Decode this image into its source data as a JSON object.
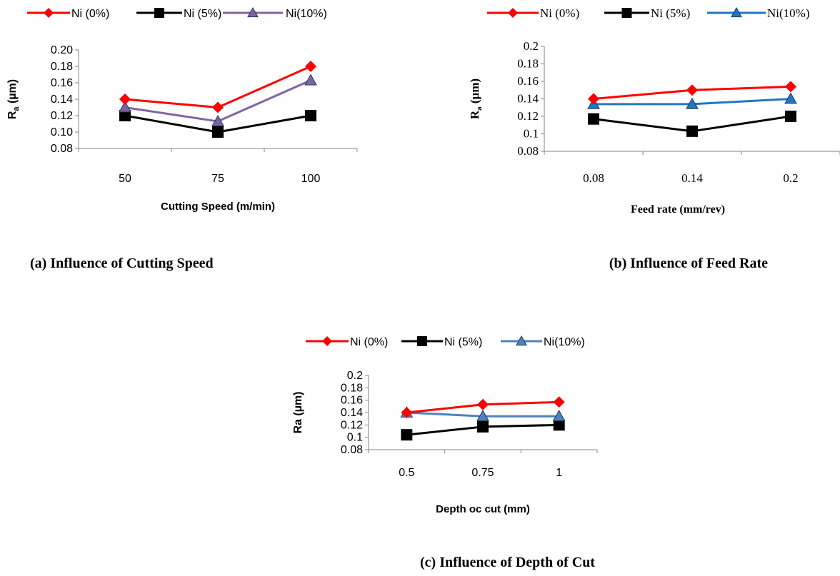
{
  "colors": {
    "ni0": "#ff0000",
    "ni5": "#000000",
    "ni10_a": "#8064a2",
    "ni10_b": "#1f77c4",
    "ni10_c": "#4f81bd"
  },
  "chart_data": [
    {
      "type": "line",
      "caption": "(a) Influence of Cutting Speed",
      "xlabel": "Cutting Speed  (m/min)",
      "ylabel_main": "R",
      "ylabel_sub": "a",
      "ylabel_unit": " (µm)",
      "categories": [
        "50",
        "75",
        "100"
      ],
      "ylim": [
        0.08,
        0.2
      ],
      "yticks": [
        "0.08",
        "0.10",
        "0.12",
        "0.14",
        "0.16",
        "0.18",
        "0.20"
      ],
      "series": [
        {
          "name": "Ni (0%)",
          "values": [
            0.14,
            0.13,
            0.18
          ]
        },
        {
          "name": "Ni (5%)",
          "values": [
            0.12,
            0.1,
            0.12
          ]
        },
        {
          "name": "Ni(10%)",
          "values": [
            0.13,
            0.113,
            0.163
          ]
        }
      ],
      "legend": "top"
    },
    {
      "type": "line",
      "caption": "(b) Influence of Feed Rate",
      "xlabel": "Feed rate (mm/rev)",
      "ylabel_main": "R",
      "ylabel_sub": "a",
      "ylabel_unit": " (µm)",
      "categories": [
        "0.08",
        "0.14",
        "0.2"
      ],
      "ylim": [
        0.08,
        0.2
      ],
      "yticks": [
        "0.08",
        "0.1",
        "0.12",
        "0.14",
        "0.16",
        "0.18",
        "0.2"
      ],
      "series": [
        {
          "name": "Ni (0%)",
          "values": [
            0.14,
            0.15,
            0.154
          ]
        },
        {
          "name": "Ni (5%)",
          "values": [
            0.117,
            0.103,
            0.12
          ]
        },
        {
          "name": "Ni(10%)",
          "values": [
            0.134,
            0.134,
            0.14
          ]
        }
      ],
      "legend": "top"
    },
    {
      "type": "line",
      "caption": "(c) Influence of Depth of Cut",
      "xlabel": "Depth oc cut (mm)",
      "ylabel_main": "Ra (µm)",
      "categories": [
        "0.5",
        "0.75",
        "1"
      ],
      "ylim": [
        0.08,
        0.2
      ],
      "yticks": [
        "0.08",
        "0.1",
        "0.12",
        "0.14",
        "0.16",
        "0.18",
        "0.2"
      ],
      "series": [
        {
          "name": "Ni (0%)",
          "values": [
            0.14,
            0.153,
            0.157
          ]
        },
        {
          "name": "Ni (5%)",
          "values": [
            0.104,
            0.117,
            0.12
          ]
        },
        {
          "name": "Ni(10%)",
          "values": [
            0.14,
            0.134,
            0.134
          ]
        }
      ],
      "legend": "top"
    }
  ]
}
